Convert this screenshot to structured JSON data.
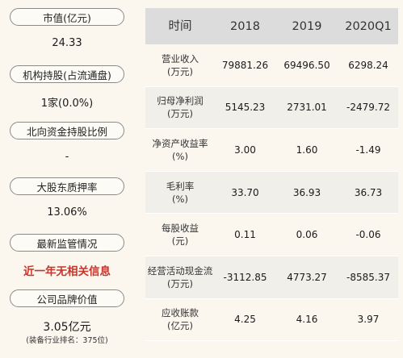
{
  "left": {
    "items": [
      {
        "label": "市值(亿元)",
        "value": "24.33"
      },
      {
        "label": "机构持股(占流通盘)",
        "value": "1家(0.0%)"
      },
      {
        "label": "北向资金持股比例",
        "value": "-"
      },
      {
        "label": "大股东质押率",
        "value": "13.06%"
      },
      {
        "label": "最新监管情况",
        "value": "近一年无相关信息"
      },
      {
        "label": "公司品牌价值",
        "value": "3.05亿元",
        "note": "(装备行业排名：375位)"
      }
    ]
  },
  "table": {
    "headers": [
      "时间",
      "2018",
      "2019",
      "2020Q1"
    ],
    "rows": [
      {
        "name": "营业收入",
        "unit": "(万元)",
        "values": [
          "79881.26",
          "69496.50",
          "6298.24"
        ]
      },
      {
        "name": "归母净利润",
        "unit": "(万元)",
        "values": [
          "5145.23",
          "2731.01",
          "-2479.72"
        ]
      },
      {
        "name": "净资产收益率",
        "unit": "(%)",
        "values": [
          "3.00",
          "1.60",
          "-1.49"
        ]
      },
      {
        "name": "毛利率",
        "unit": "(%)",
        "values": [
          "33.70",
          "36.93",
          "36.73"
        ]
      },
      {
        "name": "每股收益",
        "unit": "(元)",
        "values": [
          "0.11",
          "0.06",
          "-0.06"
        ]
      },
      {
        "name": "经营活动现金流",
        "unit": "(万元)",
        "values": [
          "-3112.85",
          "4773.27",
          "-8585.37"
        ]
      },
      {
        "name": "应收账款",
        "unit": "(亿元)",
        "values": [
          "4.25",
          "4.16",
          "3.97"
        ]
      }
    ]
  }
}
